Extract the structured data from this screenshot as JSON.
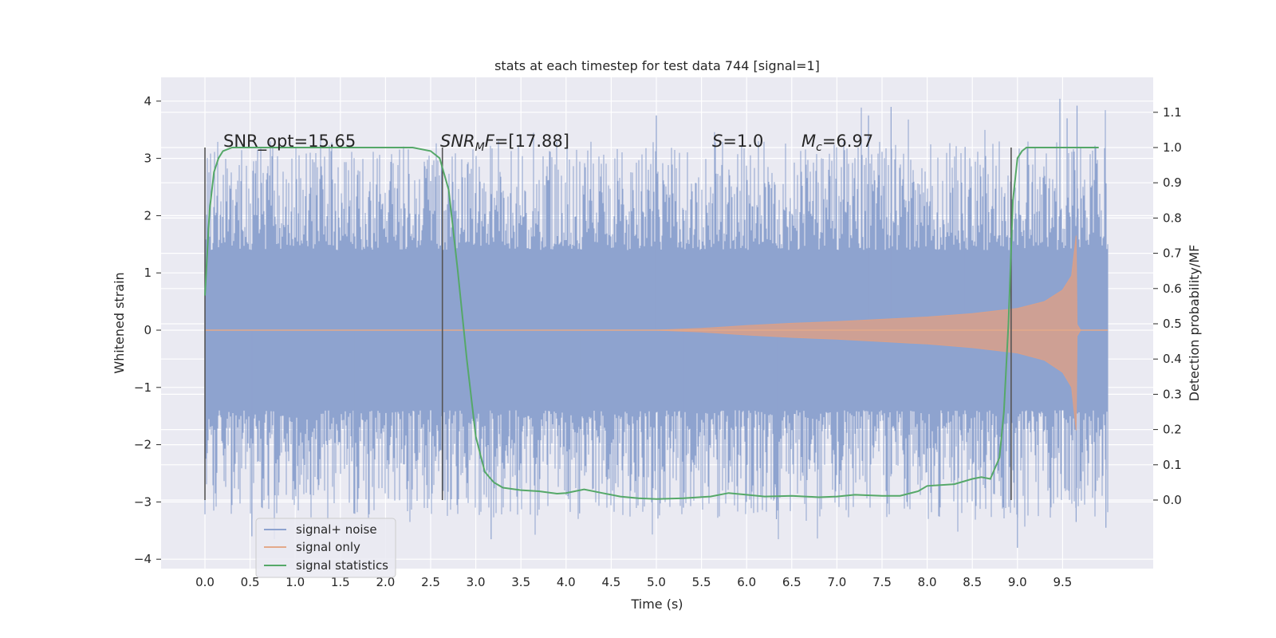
{
  "chart_data": {
    "type": "line",
    "title": "stats at each timestep for test data 744 [signal=1]",
    "xlabel": "Time (s)",
    "ylabel": "Whitened strain",
    "ylabel_right": "Detection probability/MF",
    "xlim": [
      -0.49,
      10.49
    ],
    "ylim": [
      -4.2,
      4.4
    ],
    "ylim_right": [
      -0.2,
      1.18
    ],
    "x_ticks": [
      "0.0",
      "0.5",
      "1.0",
      "1.5",
      "2.0",
      "2.5",
      "3.0",
      "3.5",
      "4.0",
      "4.5",
      "5.0",
      "5.5",
      "6.0",
      "6.5",
      "7.0",
      "7.5",
      "8.0",
      "8.5",
      "9.0",
      "9.5"
    ],
    "y_ticks": [
      "4",
      "3",
      "2",
      "1",
      "0",
      "−1",
      "−2",
      "−3",
      "−4"
    ],
    "y_right_ticks": [
      "1.1",
      "1.0",
      "0.9",
      "0.8",
      "0.7",
      "0.6",
      "0.5",
      "0.4",
      "0.3",
      "0.2",
      "0.1",
      "0.0"
    ],
    "grid": true,
    "legend_position": "lower-left",
    "annotations": {
      "snr_opt": "SNR_opt=15.65",
      "snr_mf_base": "SNR",
      "snr_mf_sub": "M",
      "snr_mf_italic_tail": "F",
      "snr_mf_value": "=[17.88]",
      "s_sym": "S",
      "s_value": "=1.0",
      "mc_sym": "M",
      "mc_sub": "c",
      "mc_value": "=6.97"
    },
    "vertical_markers": [
      0.0,
      2.63,
      8.93
    ],
    "series": [
      {
        "name": "signal+ noise",
        "color": "#8ea3cf",
        "axis": "left",
        "x_range": [
          0.0,
          10.0
        ],
        "y_peak": 4.04,
        "y_trough": -3.65,
        "description_level": "noise envelope approx ±1.4 with spikes to ~±3.9"
      },
      {
        "name": "signal only",
        "color": "#dd8452",
        "axis": "left",
        "x": [
          0.0,
          5.0,
          5.5,
          6.0,
          6.5,
          7.0,
          7.5,
          8.0,
          8.5,
          9.0,
          9.3,
          9.5,
          9.6,
          9.65,
          9.66,
          9.7,
          10.0
        ],
        "envelope": [
          0.0,
          0.0,
          0.03,
          0.08,
          0.12,
          0.15,
          0.19,
          0.23,
          0.29,
          0.38,
          0.5,
          0.7,
          0.95,
          1.65,
          0.1,
          0.0,
          0.0
        ]
      },
      {
        "name": "signal statistics",
        "color": "#55a868",
        "axis": "right",
        "x": [
          0.0,
          0.05,
          0.1,
          0.15,
          0.2,
          0.3,
          0.5,
          1.0,
          2.0,
          2.3,
          2.5,
          2.6,
          2.7,
          2.8,
          2.9,
          3.0,
          3.1,
          3.2,
          3.3,
          3.5,
          3.7,
          3.9,
          4.0,
          4.2,
          4.4,
          4.6,
          4.8,
          5.0,
          5.3,
          5.6,
          5.8,
          6.0,
          6.2,
          6.5,
          6.8,
          7.0,
          7.2,
          7.5,
          7.7,
          7.9,
          8.0,
          8.3,
          8.5,
          8.6,
          8.7,
          8.8,
          8.85,
          8.9,
          8.95,
          9.0,
          9.05,
          9.1,
          9.2,
          9.5,
          9.9
        ],
        "values": [
          0.58,
          0.82,
          0.93,
          0.97,
          0.99,
          1.0,
          1.0,
          1.0,
          1.0,
          1.0,
          0.99,
          0.97,
          0.88,
          0.65,
          0.4,
          0.18,
          0.08,
          0.05,
          0.035,
          0.028,
          0.025,
          0.018,
          0.02,
          0.03,
          0.02,
          0.01,
          0.005,
          0.003,
          0.005,
          0.01,
          0.02,
          0.015,
          0.01,
          0.012,
          0.008,
          0.01,
          0.015,
          0.012,
          0.012,
          0.025,
          0.04,
          0.045,
          0.06,
          0.065,
          0.06,
          0.12,
          0.25,
          0.5,
          0.85,
          0.97,
          0.99,
          1.0,
          1.0,
          1.0,
          1.0
        ]
      }
    ]
  }
}
